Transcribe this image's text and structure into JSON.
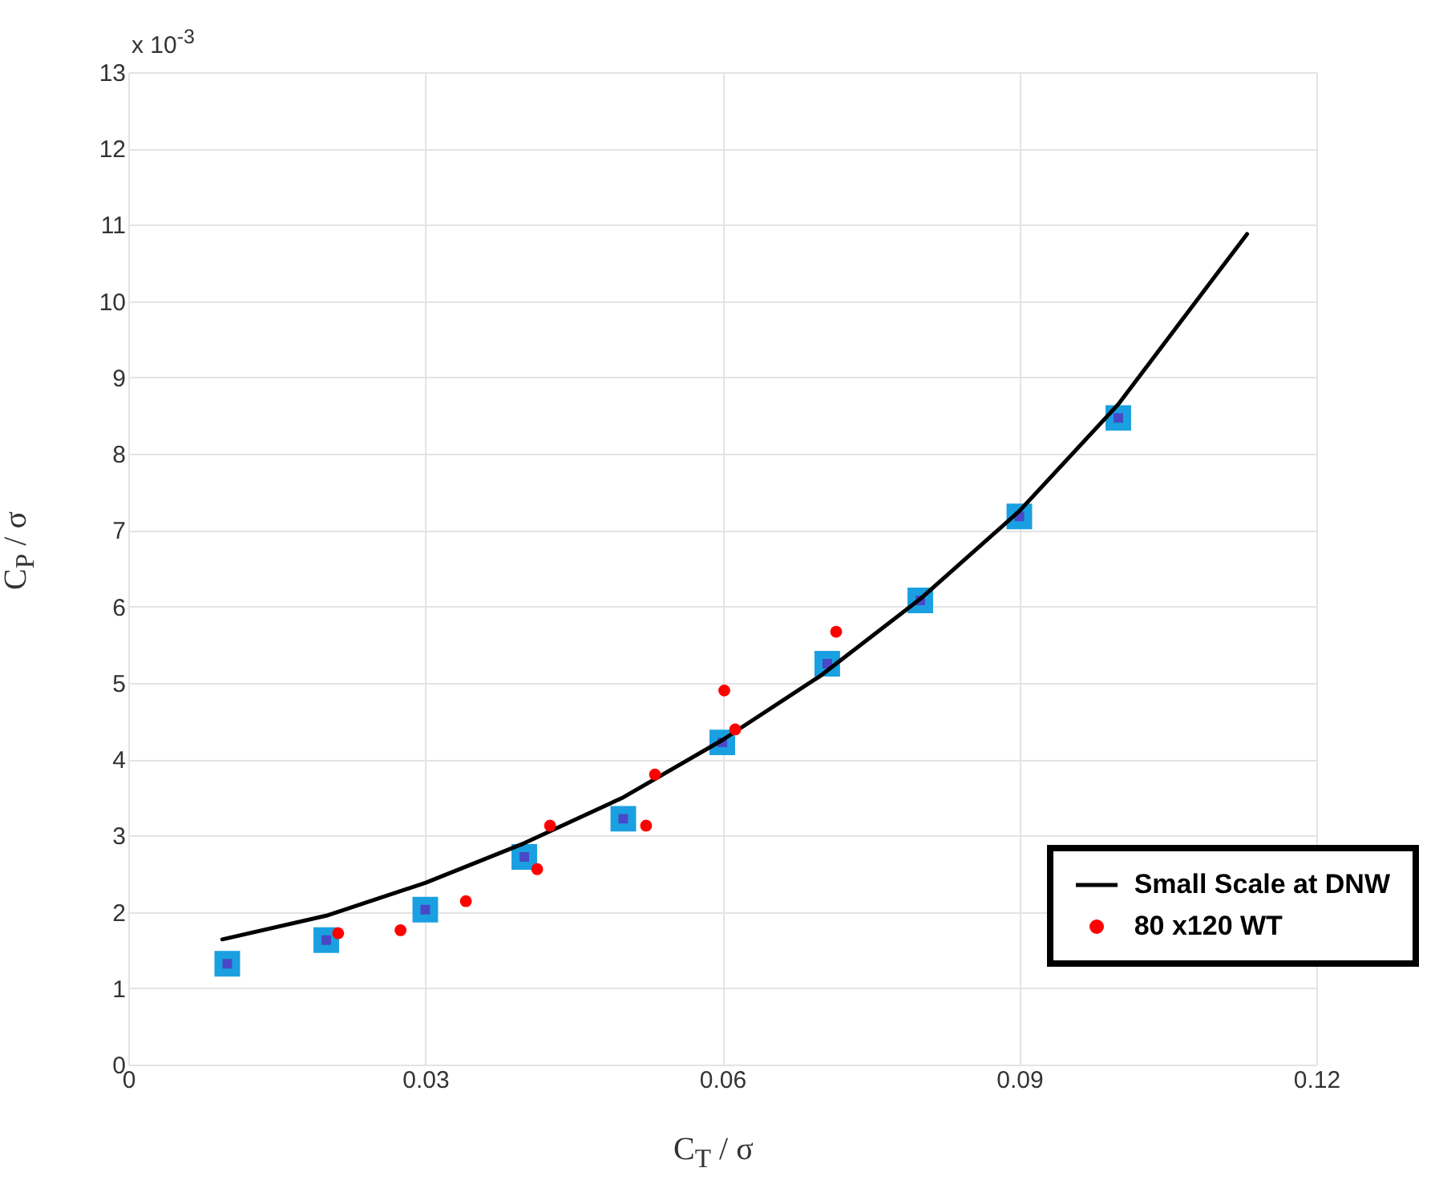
{
  "chart_data": {
    "type": "scatter",
    "xlabel": "C$_{T}$ / σ",
    "ylabel": "C$_{P}$ / σ",
    "annotations": [
      "x 10$^{-3}$"
    ],
    "xlim": [
      0,
      0.12
    ],
    "xticks": [
      {
        "value": 0,
        "label": "0"
      },
      0.03,
      0.06,
      0.09,
      0.12
    ],
    "ylim": [
      0,
      13
    ],
    "yticks": [
      0,
      1,
      2,
      3,
      4,
      5,
      6,
      7,
      8,
      9,
      10,
      11,
      12,
      13
    ],
    "grid": true,
    "legend": "bottom right",
    "series": [
      {
        "type": "scatter",
        "marker": "square",
        "color": "#1aa0e0",
        "x": [
          0.01,
          0.02,
          0.03,
          0.04,
          0.05,
          0.06,
          0.0706,
          0.08,
          0.09,
          0.1
        ],
        "values": [
          1.32,
          1.63,
          2.03,
          2.72,
          3.22,
          4.22,
          5.25,
          6.08,
          7.18,
          8.47
        ]
      },
      {
        "type": "line",
        "name": "Small Scale at DNW",
        "color": "#000000",
        "marker": "none",
        "x": [
          0.0095,
          0.02,
          0.03,
          0.04,
          0.05,
          0.06,
          0.07,
          0.08,
          0.09,
          0.1,
          0.113
        ],
        "values": [
          1.64,
          1.95,
          2.38,
          2.9,
          3.5,
          4.25,
          5.1,
          6.1,
          7.25,
          8.65,
          10.88
        ]
      },
      {
        "type": "scatter",
        "name": "80 x120 WT",
        "marker": "circle",
        "color": "#ff0000",
        "x": [
          0.0212,
          0.0275,
          0.0341,
          0.0413,
          0.0426,
          0.0523,
          0.0532,
          0.0602,
          0.0613,
          0.0715
        ],
        "values": [
          1.72,
          1.76,
          2.14,
          2.56,
          3.13,
          3.13,
          3.8,
          4.9,
          4.39,
          5.67
        ]
      }
    ]
  }
}
